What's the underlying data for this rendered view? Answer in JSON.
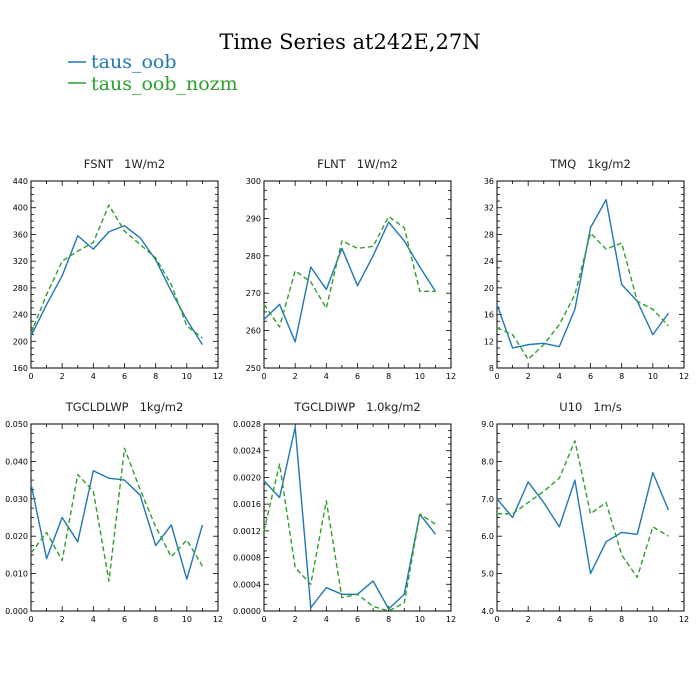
{
  "figure": {
    "title": "Time Series at242E,27N",
    "legend": [
      {
        "label": "taus_oob",
        "color": "#1f77b4",
        "dash": "solid"
      },
      {
        "label": "taus_oob_nozm",
        "color": "#2ca02c",
        "dash": "dashed"
      }
    ]
  },
  "chart_data": [
    {
      "type": "line",
      "title": "FSNT   1W/m2",
      "xlim": [
        0,
        12
      ],
      "ylim": [
        160,
        440
      ],
      "xticks": [
        0,
        2,
        4,
        6,
        8,
        10,
        12
      ],
      "yticks": [
        "160",
        "200",
        "240",
        "280",
        "320",
        "360",
        "400",
        "440"
      ],
      "x": [
        0,
        1,
        2,
        3,
        4,
        5,
        6,
        7,
        8,
        9,
        10,
        11
      ],
      "series": [
        {
          "name": "taus_oob",
          "values": [
            208,
            255,
            298,
            358,
            338,
            364,
            373,
            355,
            322,
            275,
            232,
            195
          ]
        },
        {
          "name": "taus_oob_nozm",
          "values": [
            212,
            270,
            320,
            335,
            348,
            404,
            365,
            345,
            325,
            285,
            223,
            205
          ]
        }
      ]
    },
    {
      "type": "line",
      "title": "FLNT   1W/m2",
      "xlim": [
        0,
        12
      ],
      "ylim": [
        250,
        300
      ],
      "xticks": [
        0,
        2,
        4,
        6,
        8,
        10,
        12
      ],
      "yticks": [
        "250",
        "260",
        "270",
        "280",
        "290",
        "300"
      ],
      "x": [
        0,
        1,
        2,
        3,
        4,
        5,
        6,
        7,
        8,
        9,
        10,
        11
      ],
      "series": [
        {
          "name": "taus_oob",
          "values": [
            263,
            267,
            257,
            277,
            271,
            282,
            272,
            280,
            289,
            284,
            277,
            270.5
          ]
        },
        {
          "name": "taus_oob_nozm",
          "values": [
            267,
            261,
            276,
            273,
            266,
            284,
            282,
            282.5,
            290.5,
            287.5,
            270.5,
            270.5
          ]
        }
      ]
    },
    {
      "type": "line",
      "title": "TMQ   1kg/m2",
      "xlim": [
        0,
        12
      ],
      "ylim": [
        8,
        36
      ],
      "xticks": [
        0,
        2,
        4,
        6,
        8,
        10,
        12
      ],
      "yticks": [
        "8",
        "12",
        "16",
        "20",
        "24",
        "28",
        "32",
        "36"
      ],
      "x": [
        0,
        1,
        2,
        3,
        4,
        5,
        6,
        7,
        8,
        9,
        10,
        11
      ],
      "series": [
        {
          "name": "taus_oob",
          "values": [
            17.5,
            11,
            11.5,
            11.7,
            11.2,
            16.8,
            29,
            33.2,
            20.5,
            18,
            13,
            16.2
          ]
        },
        {
          "name": "taus_oob_nozm",
          "values": [
            14,
            13,
            9.3,
            11.5,
            14.5,
            19,
            28.2,
            25.8,
            26.7,
            18,
            16.8,
            14.3
          ]
        }
      ]
    },
    {
      "type": "line",
      "title": "TGCLDLWP   1kg/m2",
      "xlim": [
        0,
        12
      ],
      "ylim": [
        0,
        0.05
      ],
      "xticks": [
        0,
        2,
        4,
        6,
        8,
        10,
        12
      ],
      "yticks": [
        "0.000",
        "0.010",
        "0.020",
        "0.030",
        "0.040",
        "0.050"
      ],
      "x": [
        0,
        1,
        2,
        3,
        4,
        5,
        6,
        7,
        8,
        9,
        10,
        11
      ],
      "series": [
        {
          "name": "taus_oob",
          "values": [
            0.034,
            0.014,
            0.025,
            0.0185,
            0.0375,
            0.0355,
            0.035,
            0.031,
            0.0175,
            0.023,
            0.0085,
            0.023
          ]
        },
        {
          "name": "taus_oob_nozm",
          "values": [
            0.0155,
            0.021,
            0.0135,
            0.0365,
            0.032,
            0.008,
            0.0435,
            0.0325,
            0.0225,
            0.0145,
            0.019,
            0.012
          ]
        }
      ]
    },
    {
      "type": "line",
      "title": "TGCLDIWP   1.0kg/m2",
      "xlim": [
        0,
        12
      ],
      "ylim": [
        0,
        0.0028
      ],
      "xticks": [
        0,
        2,
        4,
        6,
        8,
        10,
        12
      ],
      "yticks": [
        "0.0000",
        "0.0004",
        "0.0008",
        "0.0012",
        "0.0016",
        "0.0020",
        "0.0024",
        "0.0028"
      ],
      "x": [
        0,
        1,
        2,
        3,
        4,
        5,
        6,
        7,
        8,
        9,
        10,
        11
      ],
      "series": [
        {
          "name": "taus_oob",
          "values": [
            0.00195,
            0.0017,
            0.00275,
            5e-05,
            0.00035,
            0.00025,
            0.00025,
            0.00045,
            3e-05,
            0.00025,
            0.00145,
            0.00115
          ]
        },
        {
          "name": "taus_oob_nozm",
          "values": [
            0.0012,
            0.0022,
            0.00065,
            0.0004,
            0.00165,
            0.0002,
            0.00025,
            7e-05,
            0.0,
            0.00012,
            0.00145,
            0.0013
          ]
        }
      ]
    },
    {
      "type": "line",
      "title": "U10   1m/s",
      "xlim": [
        0,
        12
      ],
      "ylim": [
        4,
        9
      ],
      "xticks": [
        0,
        2,
        4,
        6,
        8,
        10,
        12
      ],
      "yticks": [
        "4.0",
        "5.0",
        "6.0",
        "7.0",
        "8.0",
        "9.0"
      ],
      "x": [
        0,
        1,
        2,
        3,
        4,
        5,
        6,
        7,
        8,
        9,
        10,
        11
      ],
      "series": [
        {
          "name": "taus_oob",
          "values": [
            7.0,
            6.5,
            7.45,
            6.9,
            6.25,
            7.5,
            5.0,
            5.85,
            6.1,
            6.05,
            7.7,
            6.7
          ]
        },
        {
          "name": "taus_oob_nozm",
          "values": [
            6.6,
            6.6,
            6.9,
            7.2,
            7.55,
            8.55,
            6.6,
            6.9,
            5.5,
            4.9,
            6.25,
            6.0
          ]
        }
      ]
    }
  ]
}
